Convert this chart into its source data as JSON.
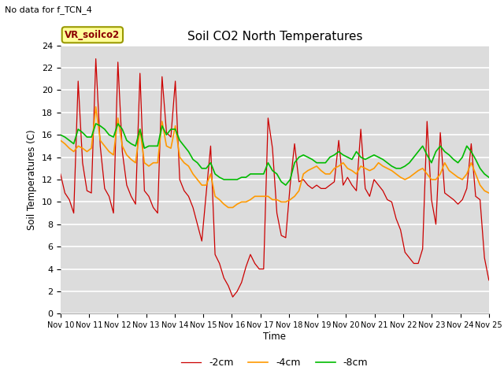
{
  "title": "Soil CO2 North Temperatures",
  "subtitle": "No data for f_TCN_4",
  "ylabel": "Soil Temperatures (C)",
  "xlabel": "Time",
  "legend_label": "VR_soilco2",
  "bg_color": "#dcdcdc",
  "ylim": [
    0,
    24
  ],
  "yticks": [
    0,
    2,
    4,
    6,
    8,
    10,
    12,
    14,
    16,
    18,
    20,
    22,
    24
  ],
  "xtick_labels": [
    "Nov 10",
    "Nov 11",
    "Nov 12",
    "Nov 13",
    "Nov 14",
    "Nov 15",
    "Nov 16",
    "Nov 17",
    "Nov 18",
    "Nov 19",
    "Nov 20",
    "Nov 21",
    "Nov 22",
    "Nov 23",
    "Nov 24",
    "Nov 25"
  ],
  "series_2cm": {
    "color": "#cc0000",
    "label": "-2cm",
    "data": [
      12.5,
      10.8,
      10.2,
      9.0,
      20.8,
      13.5,
      11.0,
      10.8,
      22.8,
      15.0,
      11.2,
      10.5,
      9.0,
      22.5,
      14.5,
      11.5,
      10.5,
      9.8,
      21.5,
      11.0,
      10.5,
      9.5,
      9.0,
      21.2,
      16.2,
      15.8,
      20.8,
      12.0,
      11.0,
      10.5,
      9.5,
      8.0,
      6.5,
      10.8,
      15.0,
      5.3,
      4.5,
      3.2,
      2.5,
      1.5,
      2.0,
      2.8,
      4.2,
      5.3,
      4.5,
      4.0,
      4.0,
      17.5,
      14.8,
      9.0,
      7.0,
      6.8,
      11.5,
      15.2,
      11.8,
      12.0,
      11.5,
      11.2,
      11.5,
      11.2,
      11.2,
      11.5,
      11.8,
      15.5,
      11.5,
      12.2,
      11.5,
      11.0,
      16.5,
      11.2,
      10.5,
      12.0,
      11.5,
      11.0,
      10.2,
      10.0,
      8.5,
      7.5,
      5.5,
      5.0,
      4.5,
      4.5,
      5.8,
      17.2,
      10.2,
      8.0,
      16.2,
      10.8,
      10.5,
      10.2,
      9.8,
      10.2,
      11.2,
      15.2,
      10.5,
      10.2,
      5.0,
      3.0
    ]
  },
  "series_4cm": {
    "color": "#ff9900",
    "label": "-4cm",
    "data": [
      15.5,
      15.2,
      14.8,
      14.5,
      15.0,
      14.8,
      14.5,
      14.8,
      18.5,
      15.5,
      15.0,
      14.5,
      14.2,
      17.5,
      15.0,
      14.2,
      13.8,
      13.5,
      16.5,
      13.5,
      13.2,
      13.5,
      13.5,
      17.2,
      15.0,
      14.8,
      16.8,
      14.0,
      13.5,
      13.2,
      12.5,
      12.0,
      11.5,
      11.5,
      12.5,
      10.5,
      10.2,
      9.8,
      9.5,
      9.5,
      9.8,
      10.0,
      10.0,
      10.2,
      10.5,
      10.5,
      10.5,
      10.5,
      10.2,
      10.2,
      10.0,
      10.0,
      10.2,
      10.5,
      11.0,
      12.5,
      12.8,
      13.0,
      13.2,
      12.8,
      12.5,
      12.5,
      13.0,
      13.2,
      13.5,
      13.0,
      12.8,
      12.5,
      13.2,
      13.0,
      12.8,
      13.0,
      13.5,
      13.2,
      13.0,
      12.8,
      12.5,
      12.2,
      12.0,
      12.2,
      12.5,
      12.8,
      13.0,
      12.5,
      12.0,
      12.0,
      12.5,
      13.5,
      12.8,
      12.5,
      12.2,
      12.0,
      12.5,
      13.5,
      12.5,
      11.5,
      11.0,
      10.8
    ]
  },
  "series_8cm": {
    "color": "#00bb00",
    "label": "-8cm",
    "data": [
      16.0,
      15.8,
      15.5,
      15.2,
      16.5,
      16.2,
      15.8,
      15.8,
      17.0,
      16.8,
      16.5,
      16.0,
      15.8,
      17.0,
      16.5,
      15.5,
      15.2,
      15.0,
      16.5,
      14.8,
      15.0,
      15.0,
      15.0,
      16.8,
      16.0,
      16.5,
      16.5,
      15.5,
      15.0,
      14.5,
      13.8,
      13.5,
      13.0,
      13.0,
      13.5,
      12.5,
      12.2,
      12.0,
      12.0,
      12.0,
      12.0,
      12.2,
      12.2,
      12.5,
      12.5,
      12.5,
      12.5,
      13.5,
      12.8,
      12.5,
      11.8,
      11.5,
      12.0,
      13.5,
      14.0,
      14.2,
      14.0,
      13.8,
      13.5,
      13.5,
      13.5,
      14.0,
      14.2,
      14.5,
      14.2,
      14.0,
      13.8,
      14.5,
      14.0,
      13.8,
      14.0,
      14.2,
      14.0,
      13.8,
      13.5,
      13.2,
      13.0,
      13.0,
      13.2,
      13.5,
      14.0,
      14.5,
      15.0,
      14.2,
      13.5,
      14.5,
      15.0,
      14.5,
      14.2,
      13.8,
      13.5,
      14.0,
      15.0,
      14.5,
      13.8,
      13.0,
      12.5,
      12.2
    ]
  }
}
